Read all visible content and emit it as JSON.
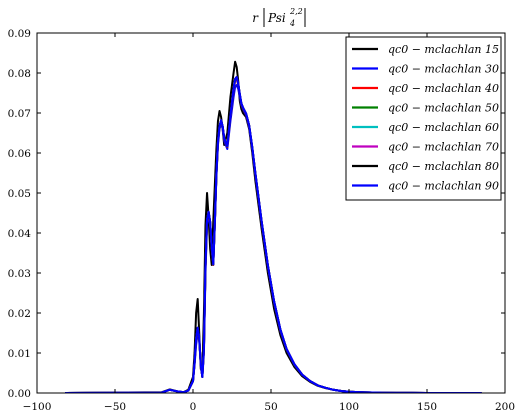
{
  "chart_data": {
    "type": "line",
    "title": "r |Psi_4^{2,2}|",
    "title_parts": {
      "prefix": "r",
      "symbol": "Psi",
      "subscript": "4",
      "superscript": "2,2"
    },
    "xlabel": "",
    "ylabel": "",
    "xlim": [
      -100,
      200
    ],
    "ylim": [
      0,
      0.09
    ],
    "xticks": [
      -100,
      -50,
      0,
      50,
      100,
      150,
      200
    ],
    "yticks": [
      0.0,
      0.01,
      0.02,
      0.03,
      0.04,
      0.05,
      0.06,
      0.07,
      0.08,
      0.09
    ],
    "xtick_labels": [
      "−100",
      "−50",
      "0",
      "50",
      "100",
      "150",
      "200"
    ],
    "ytick_labels": [
      "0.00",
      "0.01",
      "0.02",
      "0.03",
      "0.04",
      "0.05",
      "0.06",
      "0.07",
      "0.08",
      "0.09"
    ],
    "grid": false,
    "legend_position": "top-right",
    "x": [
      -82,
      -20,
      -15,
      -10,
      -6,
      -3,
      0,
      1,
      2,
      3,
      4,
      5,
      6,
      7,
      8,
      9,
      10,
      11,
      12,
      13,
      14,
      15,
      16,
      17,
      18,
      19,
      20,
      22,
      24,
      26,
      27,
      28,
      29,
      30,
      31,
      32,
      34,
      36,
      38,
      40,
      44,
      48,
      52,
      56,
      60,
      65,
      70,
      75,
      80,
      85,
      90,
      95,
      100,
      110,
      120,
      130,
      140,
      150,
      160,
      170,
      178,
      185
    ],
    "series": [
      {
        "name": "qc0 − mclachlan 15",
        "color": "#000000",
        "values": [
          0.0,
          0.0002,
          0.0009,
          0.0004,
          0.0002,
          0.0008,
          0.004,
          0.01,
          0.02,
          0.0235,
          0.015,
          0.006,
          0.005,
          0.02,
          0.042,
          0.05,
          0.044,
          0.036,
          0.032,
          0.043,
          0.052,
          0.061,
          0.068,
          0.0705,
          0.069,
          0.066,
          0.062,
          0.065,
          0.074,
          0.08,
          0.0828,
          0.0815,
          0.078,
          0.073,
          0.071,
          0.07,
          0.069,
          0.066,
          0.06,
          0.053,
          0.041,
          0.03,
          0.021,
          0.0145,
          0.01,
          0.0065,
          0.0042,
          0.0028,
          0.0018,
          0.0012,
          0.0008,
          0.0005,
          0.0003,
          0.00015,
          8e-05,
          4e-05,
          2e-05,
          1e-05,
          5e-06,
          3e-06,
          2e-06,
          0.0
        ]
      },
      {
        "name": "qc0 − mclachlan 30",
        "color": "#0000ff",
        "values": [
          0.0,
          0.0001,
          0.0008,
          0.0004,
          0.0002,
          0.0006,
          0.003,
          0.007,
          0.012,
          0.015,
          0.013,
          0.007,
          0.004,
          0.01,
          0.03,
          0.042,
          0.0445,
          0.042,
          0.036,
          0.032,
          0.042,
          0.054,
          0.062,
          0.066,
          0.0675,
          0.066,
          0.063,
          0.061,
          0.068,
          0.074,
          0.0765,
          0.077,
          0.076,
          0.074,
          0.072,
          0.071,
          0.0695,
          0.0665,
          0.061,
          0.0545,
          0.0425,
          0.0315,
          0.0225,
          0.0155,
          0.0108,
          0.007,
          0.0045,
          0.003,
          0.0019,
          0.0013,
          0.0008,
          0.0005,
          0.0003,
          0.00016,
          8e-05,
          4e-05,
          2e-05,
          1e-05,
          5e-06,
          3e-06,
          2e-06,
          0.0
        ]
      },
      {
        "name": "qc0 − mclachlan 40",
        "color": "#ff0000",
        "values": [
          0.0,
          0.0001,
          0.0008,
          0.0004,
          0.0002,
          0.0006,
          0.003,
          0.0075,
          0.013,
          0.016,
          0.0135,
          0.007,
          0.004,
          0.011,
          0.031,
          0.043,
          0.045,
          0.0425,
          0.0365,
          0.032,
          0.0425,
          0.0545,
          0.0625,
          0.0665,
          0.068,
          0.0665,
          0.0635,
          0.0615,
          0.069,
          0.0755,
          0.078,
          0.0785,
          0.077,
          0.0745,
          0.0722,
          0.0712,
          0.0697,
          0.0667,
          0.0612,
          0.0547,
          0.0427,
          0.0317,
          0.0227,
          0.0157,
          0.0109,
          0.0071,
          0.0046,
          0.003,
          0.0019,
          0.0013,
          0.0008,
          0.0005,
          0.0003,
          0.00016,
          8e-05,
          4e-05,
          2e-05,
          1e-05,
          5e-06,
          3e-06,
          2e-06,
          0.0
        ]
      },
      {
        "name": "qc0 − mclachlan 50",
        "color": "#008000",
        "values": [
          0.0,
          0.0001,
          0.0008,
          0.0004,
          0.0002,
          0.0006,
          0.003,
          0.0075,
          0.0135,
          0.0162,
          0.0136,
          0.007,
          0.004,
          0.011,
          0.0315,
          0.0432,
          0.0452,
          0.0427,
          0.0366,
          0.0321,
          0.0426,
          0.0546,
          0.0626,
          0.0666,
          0.0681,
          0.0666,
          0.0636,
          0.0616,
          0.0692,
          0.0758,
          0.0783,
          0.0788,
          0.0772,
          0.0746,
          0.0723,
          0.0713,
          0.0698,
          0.0668,
          0.0613,
          0.0548,
          0.0428,
          0.0318,
          0.0228,
          0.0158,
          0.0109,
          0.0071,
          0.0046,
          0.003,
          0.0019,
          0.0013,
          0.0008,
          0.0005,
          0.0003,
          0.00016,
          8e-05,
          4e-05,
          2e-05,
          1e-05,
          5e-06,
          3e-06,
          2e-06,
          0.0
        ]
      },
      {
        "name": "qc0 − mclachlan 60",
        "color": "#00bfbf",
        "values": [
          0.0,
          0.0001,
          0.0008,
          0.0004,
          0.0002,
          0.0006,
          0.003,
          0.0075,
          0.0135,
          0.0163,
          0.0137,
          0.007,
          0.004,
          0.0111,
          0.0316,
          0.0433,
          0.0453,
          0.0428,
          0.0367,
          0.0322,
          0.0427,
          0.0547,
          0.0627,
          0.0667,
          0.0682,
          0.0667,
          0.0637,
          0.0617,
          0.0693,
          0.076,
          0.0785,
          0.079,
          0.0773,
          0.0747,
          0.0724,
          0.0714,
          0.0699,
          0.0669,
          0.0614,
          0.0549,
          0.0429,
          0.0319,
          0.0229,
          0.0159,
          0.011,
          0.0072,
          0.0046,
          0.003,
          0.0019,
          0.0013,
          0.0008,
          0.0005,
          0.0003,
          0.00016,
          8e-05,
          4e-05,
          2e-05,
          1e-05,
          5e-06,
          3e-06,
          2e-06,
          0.0
        ]
      },
      {
        "name": "qc0 − mclachlan 70",
        "color": "#bf00bf",
        "values": [
          0.0,
          0.0001,
          0.0008,
          0.0004,
          0.0002,
          0.0006,
          0.003,
          0.0075,
          0.0135,
          0.0163,
          0.0137,
          0.007,
          0.004,
          0.0111,
          0.0316,
          0.0433,
          0.0453,
          0.0428,
          0.0367,
          0.0322,
          0.0427,
          0.0547,
          0.0627,
          0.0667,
          0.0682,
          0.0667,
          0.0637,
          0.0617,
          0.0693,
          0.076,
          0.0785,
          0.079,
          0.0773,
          0.0747,
          0.0724,
          0.0714,
          0.0699,
          0.0669,
          0.0614,
          0.0549,
          0.0429,
          0.0319,
          0.0229,
          0.0159,
          0.011,
          0.0072,
          0.0046,
          0.003,
          0.0019,
          0.0013,
          0.0008,
          0.0005,
          0.0003,
          0.00016,
          8e-05,
          4e-05,
          2e-05,
          1e-05,
          5e-06,
          3e-06,
          2e-06,
          0.0
        ]
      },
      {
        "name": "qc0 − mclachlan 80",
        "color": "#000000",
        "values": [
          0.0,
          0.0001,
          0.0008,
          0.0004,
          0.0002,
          0.0006,
          0.003,
          0.0075,
          0.0135,
          0.0163,
          0.0137,
          0.007,
          0.004,
          0.0111,
          0.0316,
          0.0433,
          0.0453,
          0.0428,
          0.0367,
          0.0322,
          0.0427,
          0.0547,
          0.0627,
          0.0667,
          0.0682,
          0.0667,
          0.0637,
          0.0617,
          0.0693,
          0.076,
          0.0785,
          0.079,
          0.0773,
          0.0747,
          0.0724,
          0.0714,
          0.0699,
          0.0669,
          0.0614,
          0.0549,
          0.0429,
          0.0319,
          0.0229,
          0.0159,
          0.011,
          0.0072,
          0.0046,
          0.003,
          0.0019,
          0.0013,
          0.0008,
          0.0005,
          0.0003,
          0.00016,
          8e-05,
          4e-05,
          2e-05,
          1e-05,
          5e-06,
          3e-06,
          2e-06,
          0.0
        ]
      },
      {
        "name": "qc0 − mclachlan 90",
        "color": "#0000ff",
        "values": [
          0.0,
          0.0001,
          0.0008,
          0.0004,
          0.0002,
          0.0006,
          0.003,
          0.0075,
          0.0135,
          0.0163,
          0.0137,
          0.007,
          0.004,
          0.0111,
          0.0316,
          0.0433,
          0.0453,
          0.0428,
          0.0367,
          0.0322,
          0.0427,
          0.0547,
          0.0627,
          0.0667,
          0.0682,
          0.0667,
          0.0637,
          0.0617,
          0.0693,
          0.076,
          0.0785,
          0.079,
          0.0773,
          0.0747,
          0.0724,
          0.0714,
          0.0699,
          0.0669,
          0.0614,
          0.0549,
          0.0429,
          0.0319,
          0.0229,
          0.0159,
          0.011,
          0.0072,
          0.0046,
          0.003,
          0.0019,
          0.0013,
          0.0008,
          0.0005,
          0.0003,
          0.00016,
          8e-05,
          4e-05,
          2e-05,
          1e-05,
          5e-06,
          3e-06,
          2e-06,
          0.0
        ]
      }
    ]
  }
}
